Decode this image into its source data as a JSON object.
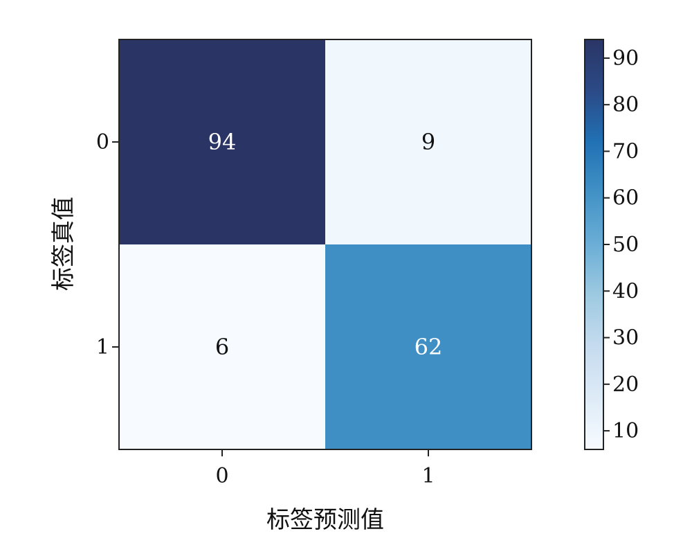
{
  "chart_data": {
    "type": "heatmap",
    "xlabel": "标签预测值",
    "ylabel": "标签真值",
    "x_categories": [
      "0",
      "1"
    ],
    "y_categories": [
      "0",
      "1"
    ],
    "values": [
      [
        94,
        9
      ],
      [
        6,
        62
      ]
    ],
    "cell_labels": [
      [
        "94",
        "9"
      ],
      [
        "6",
        "62"
      ]
    ],
    "colorbar": {
      "min": 6,
      "max": 94,
      "ticks": [
        10,
        20,
        30,
        40,
        50,
        60,
        70,
        80,
        90
      ],
      "tick_labels": [
        "10",
        "20",
        "30",
        "40",
        "50",
        "60",
        "70",
        "80",
        "90"
      ],
      "colormap": "Blues",
      "stops": [
        "#f7fbff",
        "#deebf7",
        "#c6dbef",
        "#9ecae1",
        "#6baed6",
        "#4292c6",
        "#2171b5",
        "#2b4a86",
        "#2a3565"
      ]
    },
    "colors": {
      "cell_text_dark": "#111111",
      "cell_text_light": "#ffffff"
    }
  }
}
